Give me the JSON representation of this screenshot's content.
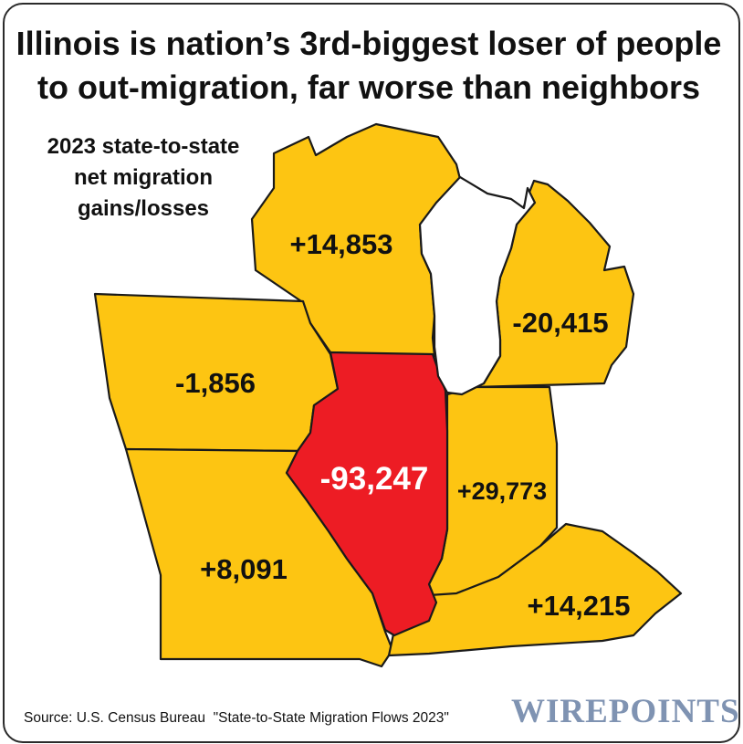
{
  "title": {
    "line1": "Illinois is nation’s 3rd-biggest loser of people",
    "line2": "to out-migration, far worse than neighbors"
  },
  "subtitle": {
    "line1": "2023 state-to-state",
    "line2": "net migration",
    "line3": "gains/losses"
  },
  "states": {
    "wisconsin": {
      "value": "+14,853"
    },
    "michigan": {
      "value": "-20,415"
    },
    "iowa": {
      "value": "-1,856"
    },
    "illinois": {
      "value": "-93,247"
    },
    "indiana": {
      "value": "+29,773"
    },
    "missouri": {
      "value": "+8,091"
    },
    "kentucky": {
      "value": "+14,215"
    }
  },
  "colors": {
    "highlight": "#ed1c24",
    "neighbor": "#fdc512",
    "lake": "#ffffff",
    "outline": "#1a1a1a",
    "logo": "#7f93b2"
  },
  "source": "Source: U.S. Census Bureau  \"State-to-State Migration Flows 2023\"",
  "logo": "WIREPOINTS"
}
